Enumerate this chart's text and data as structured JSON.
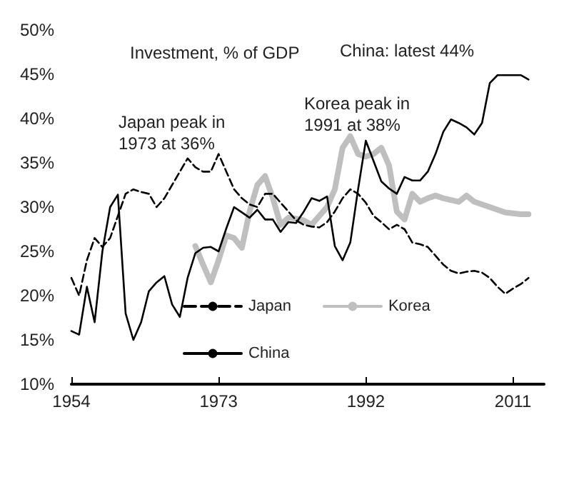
{
  "chart_data": {
    "type": "line",
    "title": "Investment, % of GDP",
    "annotations": [
      "Japan peak in\n1973 at 36%",
      "China: latest 44%",
      "Korea peak in\n1991 at 38%"
    ],
    "x": [
      1954,
      1955,
      1956,
      1957,
      1958,
      1959,
      1960,
      1961,
      1962,
      1963,
      1964,
      1965,
      1966,
      1967,
      1968,
      1969,
      1970,
      1971,
      1972,
      1973,
      1974,
      1975,
      1976,
      1977,
      1978,
      1979,
      1980,
      1981,
      1982,
      1983,
      1984,
      1985,
      1986,
      1987,
      1988,
      1989,
      1990,
      1991,
      1992,
      1993,
      1994,
      1995,
      1996,
      1997,
      1998,
      1999,
      2000,
      2001,
      2002,
      2003,
      2004,
      2005,
      2006,
      2007,
      2008,
      2009,
      2010,
      2011,
      2012,
      2013
    ],
    "series": [
      {
        "name": "Japan",
        "color": "#000000",
        "line_style": "dashed",
        "values": [
          22,
          20,
          24,
          26.5,
          25.5,
          26.5,
          29,
          31.5,
          32,
          31.7,
          31.5,
          30,
          31,
          32.5,
          34,
          35.5,
          34.5,
          34,
          34,
          36,
          34,
          32,
          31,
          30.3,
          30,
          31.5,
          31.5,
          30.5,
          29.5,
          28.5,
          28,
          27.8,
          27.7,
          28.3,
          29.5,
          31,
          32,
          31.5,
          30.5,
          29,
          28.3,
          27.5,
          28,
          27.5,
          26,
          25.8,
          25.5,
          24.5,
          23.5,
          22.8,
          22.5,
          22.7,
          22.8,
          22.6,
          22,
          21,
          20.2,
          20.8,
          21.3,
          22
        ]
      },
      {
        "name": "Korea",
        "color": "#bfbfbf",
        "line_style": "solid",
        "values": [
          null,
          null,
          null,
          null,
          null,
          null,
          null,
          null,
          null,
          null,
          null,
          null,
          null,
          null,
          null,
          null,
          25.6,
          23.5,
          21.5,
          24,
          26.8,
          26.5,
          25.4,
          29.5,
          32.5,
          33.5,
          31,
          28,
          28.8,
          28.7,
          28.5,
          28,
          29,
          30,
          32,
          36.7,
          38,
          36,
          35.7,
          36,
          36.7,
          34.7,
          29.5,
          28.6,
          31.5,
          30.6,
          31,
          31.3,
          31,
          30.8,
          30.6,
          31.3,
          30.6,
          30.3,
          30,
          29.7,
          29.4,
          29.3,
          29.2,
          29.2
        ]
      },
      {
        "name": "China",
        "color": "#000000",
        "line_style": "solid",
        "values": [
          16,
          15.6,
          21,
          17,
          25,
          30,
          31.4,
          18,
          15,
          17,
          20.5,
          21.5,
          22.2,
          19,
          17.6,
          22,
          24.8,
          25.4,
          25.5,
          25,
          27.6,
          30,
          29.4,
          28.8,
          29.7,
          28.6,
          28.6,
          27.2,
          28.3,
          28.2,
          29.5,
          31,
          30.7,
          31.2,
          25.6,
          24,
          26,
          32,
          37.5,
          35.2,
          32.9,
          32.1,
          31.5,
          33.4,
          33,
          33,
          34,
          36,
          38.5,
          39.9,
          39.5,
          39,
          38.2,
          39.5,
          44,
          44.9,
          44.9,
          44.9,
          44.9,
          44.4
        ]
      }
    ],
    "xlim": [
      1954,
      2015
    ],
    "xticks": [
      1954,
      1973,
      1992,
      2011
    ],
    "ylim": [
      10,
      50
    ],
    "yticks": [
      {
        "value": 10,
        "label": "10%"
      },
      {
        "value": 15,
        "label": "15%"
      },
      {
        "value": 20,
        "label": "20%"
      },
      {
        "value": 25,
        "label": "25%"
      },
      {
        "value": 30,
        "label": "30%"
      },
      {
        "value": 35,
        "label": "35%"
      },
      {
        "value": 40,
        "label": "40%"
      },
      {
        "value": 45,
        "label": "45%"
      },
      {
        "value": 50,
        "label": "50%"
      }
    ],
    "grid": false,
    "legend": "bottom",
    "marker": "none"
  }
}
